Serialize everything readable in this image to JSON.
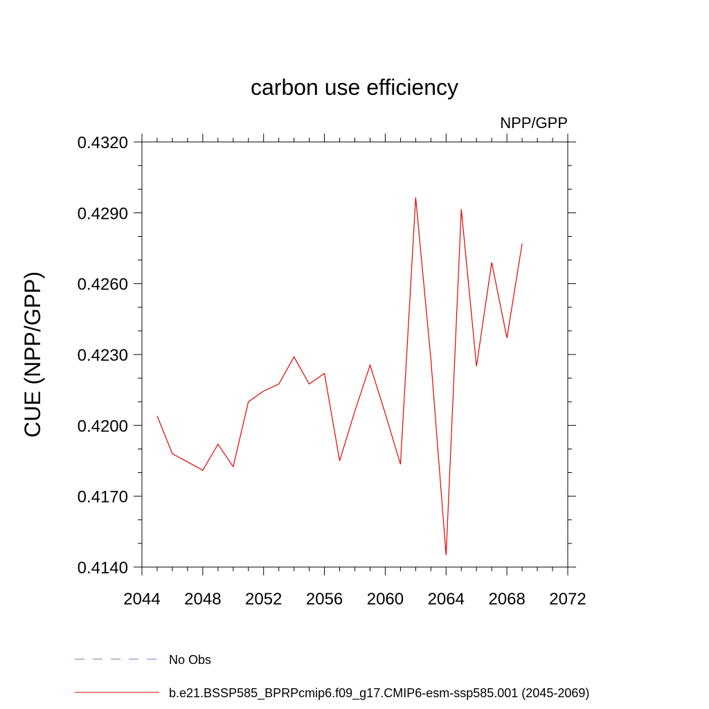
{
  "chart_data": {
    "type": "line",
    "title": "carbon use efficiency",
    "subtitle": "NPP/GPP",
    "xlabel": "",
    "ylabel": "CUE  (NPP/GPP)",
    "xlim": [
      2044,
      2072
    ],
    "ylim": [
      0.414,
      0.432
    ],
    "x_ticks": [
      2044,
      2048,
      2052,
      2056,
      2060,
      2064,
      2068,
      2072
    ],
    "x_tick_labels": [
      "2044",
      "2048",
      "2052",
      "2056",
      "2060",
      "2064",
      "2068",
      "2072"
    ],
    "y_ticks": [
      0.414,
      0.417,
      0.42,
      0.423,
      0.426,
      0.429,
      0.432
    ],
    "y_tick_labels": [
      "0.4140",
      "0.4170",
      "0.4200",
      "0.4230",
      "0.4260",
      "0.4290",
      "0.4320"
    ],
    "x_minor_step": 1,
    "y_minor_step": 0.001,
    "grid": false,
    "legend_placement": "bottom",
    "series": [
      {
        "name": "b.e21.BSSP585_BPRPcmip6.f09_g17.CMIP6-esm-ssp585.001 (2045-2069)",
        "color": "#e00000",
        "style": "solid",
        "x": [
          2045,
          2046,
          2047,
          2048,
          2049,
          2050,
          2051,
          2052,
          2053,
          2054,
          2055,
          2056,
          2057,
          2058,
          2059,
          2060,
          2061,
          2062,
          2063,
          2064,
          2065,
          2066,
          2067,
          2068,
          2069
        ],
        "values": [
          0.4204,
          0.4188,
          0.41845,
          0.4181,
          0.4192,
          0.41825,
          0.421,
          0.42145,
          0.42175,
          0.4229,
          0.42175,
          0.4222,
          0.4185,
          0.4206,
          0.42255,
          0.4205,
          0.41835,
          0.42965,
          0.4228,
          0.4145,
          0.42915,
          0.4225,
          0.4269,
          0.4237,
          0.4277
        ]
      }
    ],
    "legend": [
      {
        "label": "No Obs",
        "color": "#7b6fb0",
        "style": "dashed"
      },
      {
        "label": "b.e21.BSSP585_BPRPcmip6.f09_g17.CMIP6-esm-ssp585.001 (2045-2069)",
        "color": "#e00000",
        "style": "solid"
      }
    ]
  }
}
